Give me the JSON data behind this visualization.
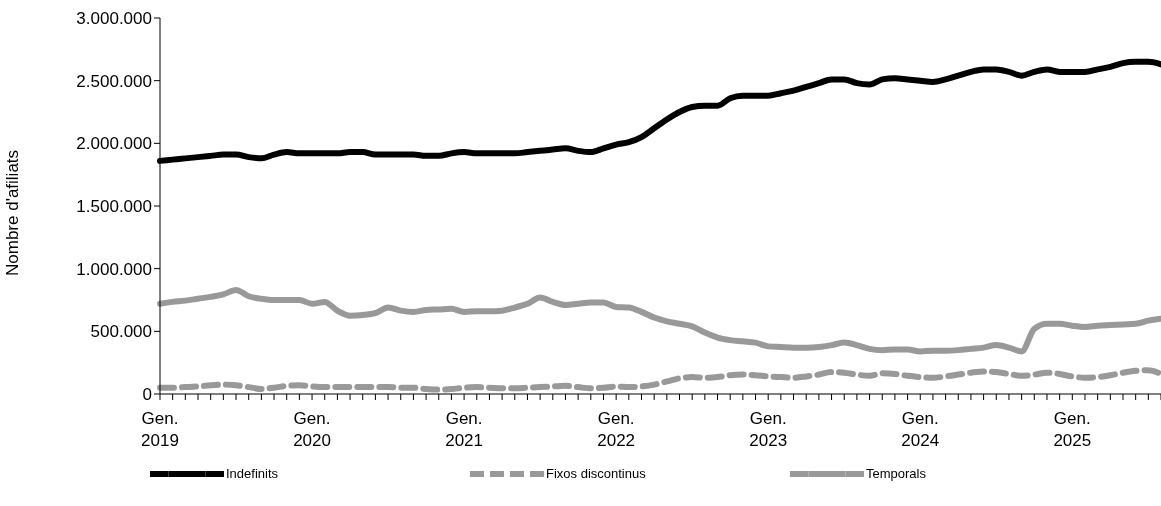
{
  "chart_data": {
    "type": "line",
    "ylabel": "Nombre d'afiliats",
    "categories": [
      "Gen. 2019",
      null,
      null,
      null,
      null,
      null,
      null,
      null,
      null,
      null,
      null,
      null,
      "Gen. 2020",
      null,
      null,
      null,
      null,
      null,
      null,
      null,
      null,
      null,
      null,
      null,
      "Gen. 2021",
      null,
      null,
      null,
      null,
      null,
      null,
      null,
      null,
      null,
      null,
      null,
      "Gen. 2022",
      null,
      null,
      null,
      null,
      null,
      null,
      null,
      null,
      null,
      null,
      null,
      "Gen. 2023",
      null,
      null,
      null,
      null,
      null,
      null,
      null,
      null,
      null,
      null,
      null,
      "Gen. 2024",
      null,
      null,
      null,
      null,
      null,
      null,
      null,
      null,
      null,
      null,
      null,
      "Gen. 2025",
      null,
      null,
      null,
      null,
      null,
      null,
      null
    ],
    "series": [
      {
        "name": "Indefinits",
        "color": "#000000",
        "line_style": "solid",
        "values": [
          1860000,
          1870000,
          1880000,
          1890000,
          1900000,
          1910000,
          1910000,
          1890000,
          1880000,
          1910000,
          1930000,
          1920000,
          1920000,
          1920000,
          1920000,
          1930000,
          1930000,
          1910000,
          1910000,
          1910000,
          1910000,
          1900000,
          1900000,
          1920000,
          1930000,
          1920000,
          1920000,
          1920000,
          1920000,
          1930000,
          1940000,
          1950000,
          1960000,
          1940000,
          1930000,
          1960000,
          1990000,
          2010000,
          2050000,
          2120000,
          2190000,
          2250000,
          2290000,
          2300000,
          2300000,
          2360000,
          2380000,
          2380000,
          2380000,
          2400000,
          2420000,
          2450000,
          2480000,
          2510000,
          2510000,
          2480000,
          2470000,
          2510000,
          2520000,
          2510000,
          2500000,
          2490000,
          2510000,
          2540000,
          2570000,
          2590000,
          2590000,
          2570000,
          2540000,
          2570000,
          2590000,
          2570000,
          2570000,
          2570000,
          2590000,
          2610000,
          2640000,
          2650000,
          2650000,
          2630000
        ]
      },
      {
        "name": "Fixos discontinus",
        "color": "#999999",
        "line_style": "dashed",
        "values": [
          50000,
          50000,
          55000,
          60000,
          70000,
          75000,
          70000,
          55000,
          40000,
          50000,
          65000,
          70000,
          60000,
          55000,
          55000,
          55000,
          55000,
          55000,
          55000,
          50000,
          50000,
          40000,
          35000,
          40000,
          50000,
          55000,
          50000,
          45000,
          45000,
          50000,
          55000,
          60000,
          65000,
          55000,
          45000,
          50000,
          60000,
          55000,
          60000,
          75000,
          100000,
          125000,
          135000,
          130000,
          135000,
          150000,
          155000,
          150000,
          140000,
          135000,
          130000,
          140000,
          155000,
          175000,
          170000,
          155000,
          145000,
          165000,
          160000,
          145000,
          135000,
          130000,
          140000,
          155000,
          170000,
          180000,
          175000,
          160000,
          145000,
          155000,
          170000,
          160000,
          140000,
          130000,
          135000,
          150000,
          170000,
          185000,
          190000,
          160000
        ]
      },
      {
        "name": "Temporals",
        "color": "#999999",
        "line_style": "solid",
        "values": [
          720000,
          735000,
          745000,
          760000,
          775000,
          795000,
          830000,
          780000,
          760000,
          750000,
          750000,
          750000,
          720000,
          735000,
          665000,
          625000,
          630000,
          645000,
          690000,
          665000,
          655000,
          670000,
          675000,
          680000,
          655000,
          660000,
          660000,
          665000,
          690000,
          720000,
          770000,
          735000,
          710000,
          720000,
          730000,
          730000,
          695000,
          690000,
          655000,
          610000,
          580000,
          560000,
          540000,
          490000,
          450000,
          430000,
          420000,
          410000,
          380000,
          375000,
          370000,
          370000,
          375000,
          390000,
          410000,
          390000,
          360000,
          350000,
          355000,
          355000,
          340000,
          345000,
          345000,
          350000,
          360000,
          370000,
          390000,
          370000,
          340000,
          520000,
          560000,
          560000,
          545000,
          535000,
          545000,
          550000,
          555000,
          560000,
          585000,
          600000
        ]
      }
    ],
    "ylim": [
      0,
      3000000
    ],
    "yticks": [
      {
        "value": 0,
        "label": "0"
      },
      {
        "value": 500000,
        "label": "500.000"
      },
      {
        "value": 1000000,
        "label": "1.000.000"
      },
      {
        "value": 1500000,
        "label": "1.500.000"
      },
      {
        "value": 2000000,
        "label": "2.000.000"
      },
      {
        "value": 2500000,
        "label": "2.500.000"
      },
      {
        "value": 3000000,
        "label": "3.000.000"
      }
    ],
    "grid": false,
    "legend": "bottom",
    "marker": "none"
  }
}
